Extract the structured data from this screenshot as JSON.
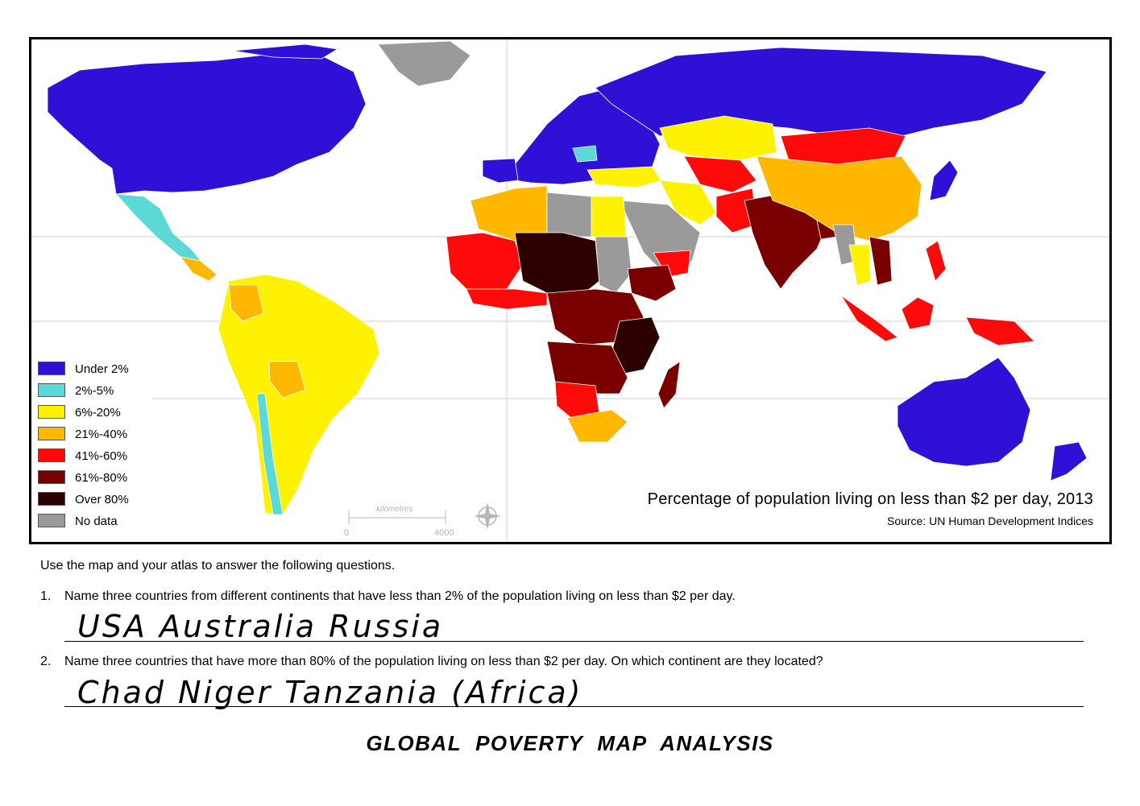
{
  "map": {
    "title": "Percentage of population living on less than $2 per day, 2013",
    "source": "Source: UN Human Development Indices",
    "scale": {
      "label": "kilometres",
      "zero": "0",
      "max": "4000"
    },
    "colors": {
      "under_2": "#2e10d6",
      "p2_5": "#5ad9d6",
      "p6_20": "#fff200",
      "p21_40": "#ffb700",
      "p41_60": "#ff0a0a",
      "p61_80": "#7a0000",
      "over_80": "#2c0000",
      "no_data": "#9a9a9a"
    },
    "legend": [
      {
        "label": "Under 2%",
        "color": "#2e10d6"
      },
      {
        "label": "2%-5%",
        "color": "#5ad9d6"
      },
      {
        "label": "6%-20%",
        "color": "#fff200"
      },
      {
        "label": "21%-40%",
        "color": "#ffb700"
      },
      {
        "label": "41%-60%",
        "color": "#ff0a0a"
      },
      {
        "label": "61%-80%",
        "color": "#7a0000"
      },
      {
        "label": "Over 80%",
        "color": "#2c0000"
      },
      {
        "label": "No data",
        "color": "#9a9a9a"
      }
    ],
    "compass_icon": "compass-rose-icon"
  },
  "worksheet": {
    "instructions": "Use the map and your atlas to answer the following questions.",
    "questions": [
      {
        "number": "1.",
        "text": "Name three countries from different continents that have less than 2% of the population living on less than $2 per day.",
        "answer": "USA Australia Russia"
      },
      {
        "number": "2.",
        "text": "Name three countries that have more than 80% of the population living on less than $2 per day. On which continent are they located?",
        "answer": "Chad Niger Tanzania (Africa)"
      }
    ],
    "title": "GLOBAL  POVERTY  MAP  ANALYSIS"
  }
}
